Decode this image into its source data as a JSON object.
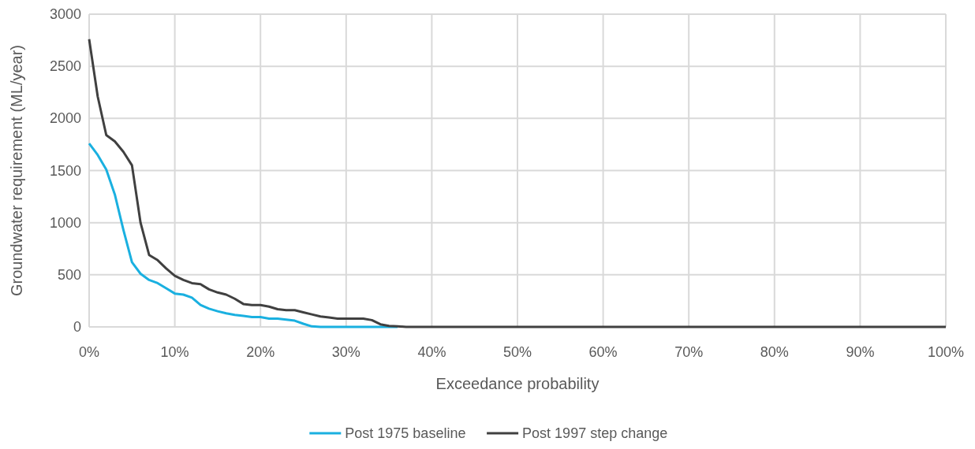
{
  "chart_data": {
    "type": "line",
    "xlabel": "Exceedance probability",
    "ylabel": "Groundwater requirement (ML/year)",
    "x": [
      0,
      1,
      2,
      3,
      4,
      5,
      6,
      7,
      8,
      9,
      10,
      11,
      12,
      13,
      14,
      15,
      16,
      17,
      18,
      19,
      20,
      21,
      22,
      23,
      24,
      25,
      26,
      27,
      28,
      29,
      30,
      31,
      32,
      33,
      34,
      35,
      36,
      37,
      38,
      40,
      100
    ],
    "series": [
      {
        "name": "Post 1975 baseline",
        "color": "#1ab0e0",
        "values": [
          1760,
          1650,
          1510,
          1270,
          930,
          620,
          510,
          450,
          420,
          370,
          320,
          310,
          280,
          210,
          175,
          150,
          130,
          115,
          105,
          95,
          95,
          80,
          80,
          70,
          60,
          30,
          5,
          0,
          0,
          0,
          0,
          0,
          0,
          0,
          0,
          0,
          0,
          null,
          null,
          null,
          null
        ]
      },
      {
        "name": "Post 1997 step change",
        "color": "#404040",
        "values": [
          2760,
          2210,
          1840,
          1780,
          1680,
          1550,
          1000,
          690,
          640,
          560,
          490,
          450,
          420,
          410,
          360,
          330,
          310,
          270,
          220,
          210,
          210,
          195,
          170,
          160,
          160,
          140,
          120,
          100,
          90,
          80,
          80,
          80,
          80,
          65,
          25,
          10,
          5,
          0,
          0,
          0,
          0
        ]
      }
    ],
    "xlim": [
      0,
      100
    ],
    "xticks": [
      {
        "value": 0,
        "label": "0%"
      },
      {
        "value": 10,
        "label": "10%"
      },
      {
        "value": 20,
        "label": "20%"
      },
      {
        "value": 30,
        "label": "30%"
      },
      {
        "value": 40,
        "label": "40%"
      },
      {
        "value": 50,
        "label": "50%"
      },
      {
        "value": 60,
        "label": "60%"
      },
      {
        "value": 70,
        "label": "70%"
      },
      {
        "value": 80,
        "label": "80%"
      },
      {
        "value": 90,
        "label": "90%"
      },
      {
        "value": 100,
        "label": "100%"
      }
    ],
    "ylim": [
      0,
      3000
    ],
    "yticks": [
      0,
      500,
      1000,
      1500,
      2000,
      2500,
      3000
    ],
    "grid": true,
    "legend": "bottom",
    "marker": "none",
    "line_style": "solid"
  }
}
